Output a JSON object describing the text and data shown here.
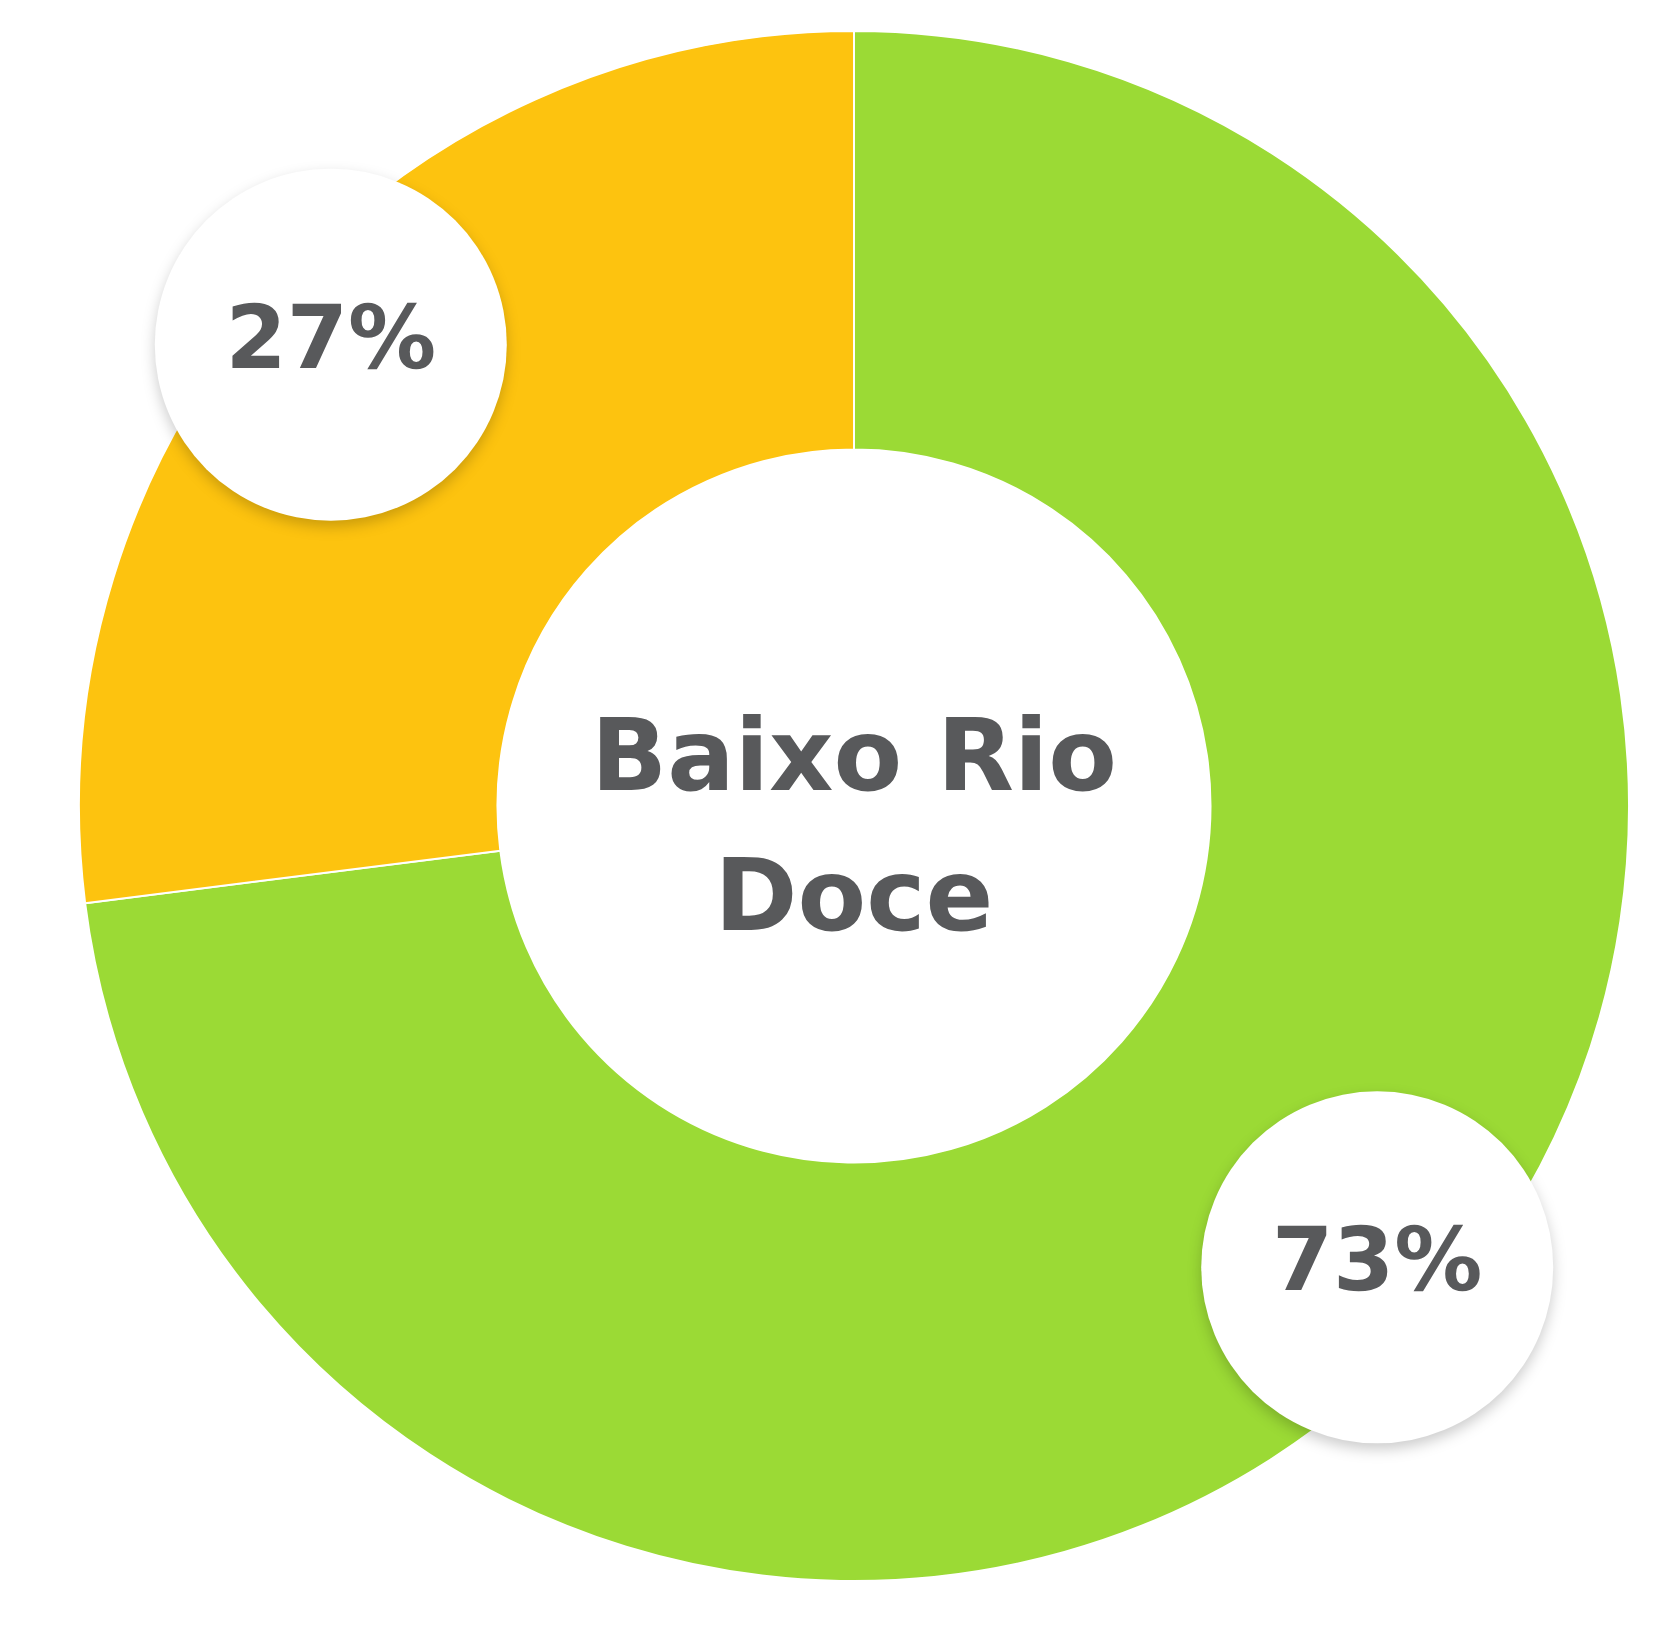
{
  "chart_data": {
    "type": "donut",
    "title": "Baixo Rio Doce",
    "categories": [
      null,
      null
    ],
    "values": [
      73,
      27
    ],
    "colors": [
      "#9bda35",
      "#fdc30f"
    ],
    "value_labels": [
      "73%",
      "27%"
    ],
    "legend": false
  }
}
